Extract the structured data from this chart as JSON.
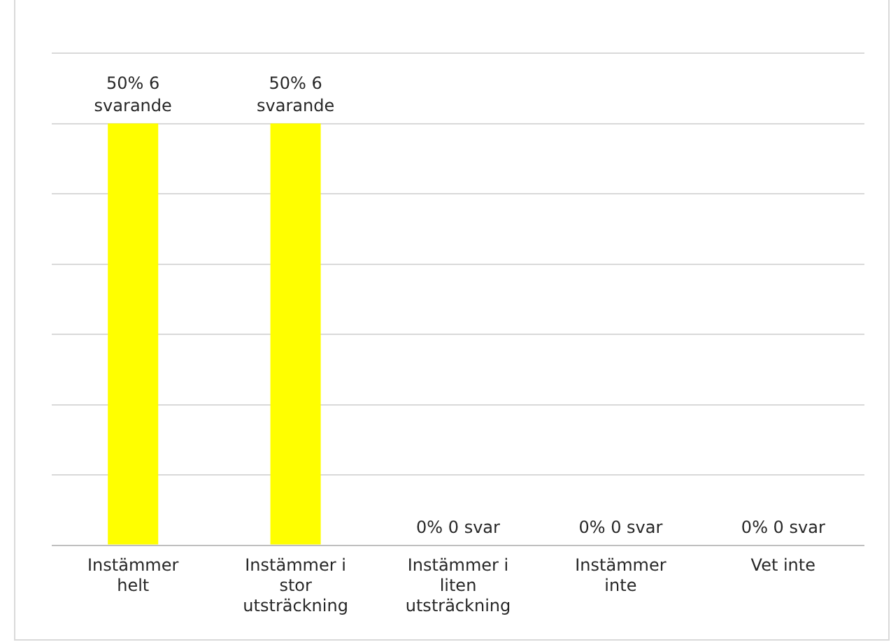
{
  "chart_data": {
    "type": "bar",
    "categories": [
      "Instämmer helt",
      "Instämmer i stor utsträckning",
      "Instämmer i liten utsträckning",
      "Instämmer inte",
      "Vet inte"
    ],
    "values": [
      6,
      6,
      0,
      0,
      0
    ],
    "color": "#ffff00",
    "value_labels": [
      "50% 6 svarande",
      "50% 6 svarande",
      "0% 0 svar",
      "0% 0 svar",
      "0% 0 svar"
    ],
    "ylim": [
      0,
      7
    ],
    "yticks": [
      {
        "value": 0,
        "label": null
      },
      {
        "value": 1,
        "label": null
      },
      {
        "value": 2,
        "label": null
      },
      {
        "value": 3,
        "label": null
      },
      {
        "value": 4,
        "label": null
      },
      {
        "value": 5,
        "label": null
      },
      {
        "value": 6,
        "label": null
      },
      {
        "value": 7,
        "label": null
      }
    ],
    "grid": "y",
    "legend": false,
    "tick_labels": "x"
  }
}
